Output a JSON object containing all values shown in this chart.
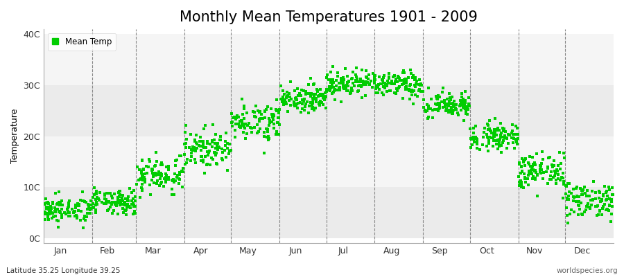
{
  "title": "Monthly Mean Temperatures 1901 - 2009",
  "ylabel": "Temperature",
  "ytick_labels": [
    "0C",
    "10C",
    "20C",
    "30C",
    "40C"
  ],
  "ytick_values": [
    0,
    10,
    20,
    30,
    40
  ],
  "ylim": [
    -1,
    41
  ],
  "months": [
    "Jan",
    "Feb",
    "Mar",
    "Apr",
    "May",
    "Jun",
    "Jul",
    "Aug",
    "Sep",
    "Oct",
    "Nov",
    "Dec"
  ],
  "dot_color": "#00CC00",
  "band_color_light": "#EBEBEB",
  "band_color_dark": "#F5F5F5",
  "fig_bg_color": "#FFFFFF",
  "legend_label": "Mean Temp",
  "bottom_left": "Latitude 35.25 Longitude 39.25",
  "bottom_right": "worldspecies.org",
  "title_fontsize": 15,
  "label_fontsize": 9,
  "monthly_mean_temps": [
    5.5,
    7.0,
    12.5,
    17.5,
    23.0,
    27.5,
    30.5,
    30.0,
    26.0,
    20.0,
    13.0,
    7.5
  ],
  "monthly_std": [
    1.3,
    1.2,
    1.8,
    1.8,
    1.8,
    1.3,
    1.3,
    1.3,
    1.3,
    1.3,
    1.8,
    1.8
  ],
  "n_years": 109,
  "random_seed": 42,
  "days_in_months": [
    31,
    28,
    31,
    30,
    31,
    30,
    31,
    31,
    30,
    31,
    30,
    31
  ]
}
